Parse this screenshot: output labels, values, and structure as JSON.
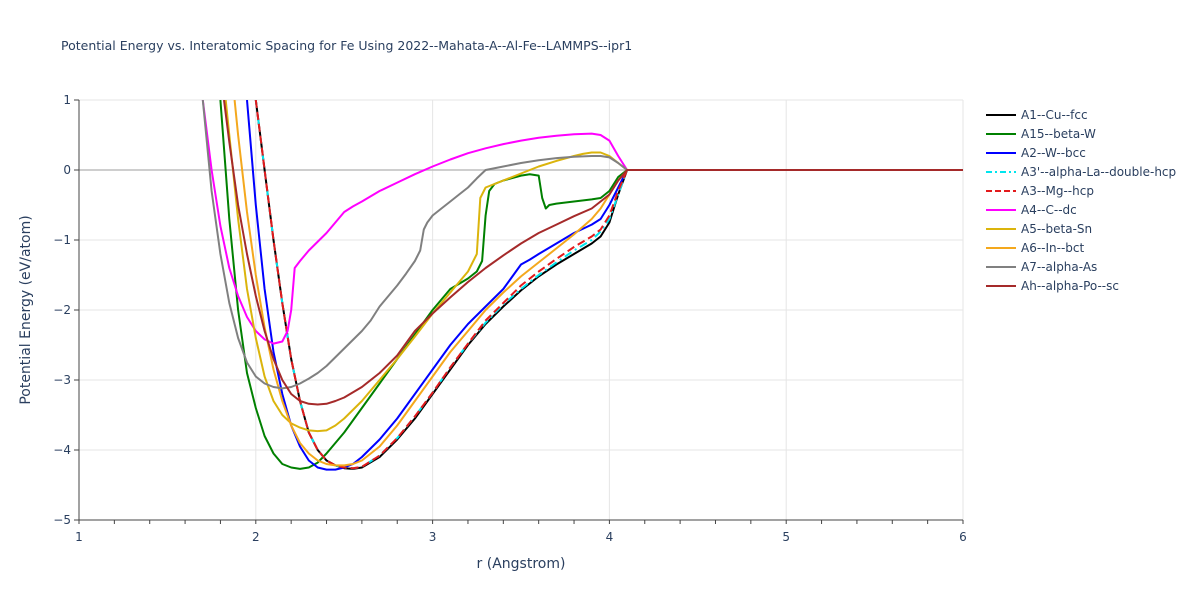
{
  "chart_data": {
    "type": "line",
    "title": "Potential Energy vs. Interatomic Spacing for Fe Using 2022--Mahata-A--Al-Fe--LAMMPS--ipr1",
    "xlabel": "r (Angstrom)",
    "ylabel": "Potential Energy (eV/atom)",
    "xlim": [
      1,
      6
    ],
    "ylim": [
      -5,
      1
    ],
    "xticks": [
      1,
      2,
      3,
      4,
      5,
      6
    ],
    "yticks": [
      1,
      0,
      -1,
      -2,
      -3,
      -4,
      -5
    ],
    "xtick_labels": [
      "1",
      "2",
      "3",
      "4",
      "5",
      "6"
    ],
    "ytick_labels": [
      "1",
      "0",
      "−1",
      "−2",
      "−3",
      "−4",
      "−5"
    ],
    "grid": true,
    "legend_position": "right",
    "series": [
      {
        "name": "A1--Cu--fcc",
        "color": "#000000",
        "dash": "solid",
        "x": [
          2.0,
          2.05,
          2.1,
          2.15,
          2.2,
          2.25,
          2.3,
          2.35,
          2.4,
          2.45,
          2.5,
          2.55,
          2.6,
          2.7,
          2.8,
          2.9,
          3.0,
          3.1,
          3.2,
          3.3,
          3.4,
          3.5,
          3.6,
          3.7,
          3.8,
          3.9,
          3.95,
          4.0,
          4.05,
          4.1,
          6.0
        ],
        "y": [
          1.0,
          0.0,
          -1.0,
          -1.9,
          -2.7,
          -3.3,
          -3.75,
          -4.0,
          -4.15,
          -4.22,
          -4.26,
          -4.27,
          -4.25,
          -4.1,
          -3.85,
          -3.55,
          -3.2,
          -2.85,
          -2.5,
          -2.2,
          -1.95,
          -1.72,
          -1.52,
          -1.35,
          -1.2,
          -1.05,
          -0.95,
          -0.75,
          -0.35,
          0.0,
          0.0
        ]
      },
      {
        "name": "A15--beta-W",
        "color": "#008000",
        "dash": "solid",
        "x": [
          1.8,
          1.85,
          1.9,
          1.95,
          2.0,
          2.05,
          2.1,
          2.15,
          2.2,
          2.25,
          2.3,
          2.35,
          2.4,
          2.5,
          2.6,
          2.7,
          2.8,
          2.9,
          3.0,
          3.1,
          3.2,
          3.25,
          3.28,
          3.3,
          3.32,
          3.35,
          3.4,
          3.5,
          3.55,
          3.6,
          3.62,
          3.64,
          3.66,
          3.7,
          3.8,
          3.9,
          3.95,
          4.0,
          4.05,
          4.1,
          6.0
        ],
        "y": [
          1.0,
          -0.7,
          -2.0,
          -2.9,
          -3.4,
          -3.8,
          -4.05,
          -4.2,
          -4.25,
          -4.27,
          -4.25,
          -4.18,
          -4.05,
          -3.75,
          -3.4,
          -3.05,
          -2.7,
          -2.35,
          -2.0,
          -1.7,
          -1.55,
          -1.45,
          -1.3,
          -0.65,
          -0.3,
          -0.2,
          -0.15,
          -0.08,
          -0.06,
          -0.08,
          -0.4,
          -0.55,
          -0.5,
          -0.48,
          -0.45,
          -0.42,
          -0.4,
          -0.3,
          -0.1,
          0.0,
          0.0
        ]
      },
      {
        "name": "A2--W--bcc",
        "color": "#0000ff",
        "dash": "solid",
        "x": [
          1.95,
          2.0,
          2.05,
          2.1,
          2.15,
          2.2,
          2.25,
          2.3,
          2.35,
          2.4,
          2.45,
          2.5,
          2.55,
          2.6,
          2.7,
          2.8,
          2.9,
          3.0,
          3.1,
          3.2,
          3.3,
          3.4,
          3.5,
          3.55,
          3.6,
          3.7,
          3.8,
          3.9,
          3.95,
          4.0,
          4.05,
          4.1,
          6.0
        ],
        "y": [
          1.0,
          -0.5,
          -1.7,
          -2.6,
          -3.2,
          -3.65,
          -3.95,
          -4.15,
          -4.25,
          -4.28,
          -4.28,
          -4.25,
          -4.2,
          -4.1,
          -3.85,
          -3.55,
          -3.2,
          -2.85,
          -2.5,
          -2.2,
          -1.95,
          -1.7,
          -1.35,
          -1.28,
          -1.2,
          -1.05,
          -0.9,
          -0.78,
          -0.7,
          -0.5,
          -0.25,
          0.0,
          0.0
        ]
      },
      {
        "name": "A3'--alpha-La--double-hcp",
        "color": "#00e5ee",
        "dash": "dashdot",
        "x": [
          2.0,
          2.05,
          2.1,
          2.15,
          2.2,
          2.25,
          2.3,
          2.35,
          2.4,
          2.45,
          2.5,
          2.55,
          2.6,
          2.7,
          2.8,
          2.9,
          3.0,
          3.1,
          3.2,
          3.3,
          3.4,
          3.5,
          3.6,
          3.7,
          3.8,
          3.9,
          3.95,
          4.0,
          4.05,
          4.1,
          6.0
        ],
        "y": [
          1.0,
          0.0,
          -1.0,
          -1.9,
          -2.7,
          -3.3,
          -3.75,
          -4.0,
          -4.15,
          -4.22,
          -4.25,
          -4.26,
          -4.24,
          -4.08,
          -3.83,
          -3.52,
          -3.18,
          -2.82,
          -2.48,
          -2.18,
          -1.92,
          -1.7,
          -1.5,
          -1.32,
          -1.15,
          -1.0,
          -0.88,
          -0.7,
          -0.35,
          0.0,
          0.0
        ]
      },
      {
        "name": "A3--Mg--hcp",
        "color": "#e31a1c",
        "dash": "dash",
        "x": [
          2.0,
          2.05,
          2.1,
          2.15,
          2.2,
          2.25,
          2.3,
          2.35,
          2.4,
          2.45,
          2.5,
          2.55,
          2.6,
          2.7,
          2.8,
          2.9,
          3.0,
          3.1,
          3.2,
          3.3,
          3.4,
          3.5,
          3.6,
          3.7,
          3.8,
          3.9,
          3.95,
          4.0,
          4.05,
          4.1,
          6.0
        ],
        "y": [
          1.0,
          0.0,
          -1.0,
          -1.9,
          -2.7,
          -3.3,
          -3.75,
          -4.0,
          -4.15,
          -4.22,
          -4.25,
          -4.26,
          -4.24,
          -4.08,
          -3.83,
          -3.52,
          -3.18,
          -2.82,
          -2.48,
          -2.15,
          -1.9,
          -1.65,
          -1.45,
          -1.27,
          -1.1,
          -0.95,
          -0.85,
          -0.65,
          -0.3,
          0.0,
          0.0
        ]
      },
      {
        "name": "A4--C--dc",
        "color": "#ff00ff",
        "dash": "solid",
        "x": [
          1.7,
          1.75,
          1.8,
          1.85,
          1.9,
          1.95,
          2.0,
          2.05,
          2.1,
          2.15,
          2.18,
          2.2,
          2.22,
          2.25,
          2.3,
          2.4,
          2.5,
          2.55,
          2.6,
          2.7,
          2.8,
          2.9,
          3.0,
          3.1,
          3.2,
          3.3,
          3.4,
          3.5,
          3.6,
          3.7,
          3.8,
          3.9,
          3.95,
          4.0,
          4.05,
          4.1,
          6.0
        ],
        "y": [
          1.0,
          0.0,
          -0.8,
          -1.4,
          -1.8,
          -2.1,
          -2.3,
          -2.42,
          -2.48,
          -2.45,
          -2.3,
          -2.0,
          -1.4,
          -1.3,
          -1.15,
          -0.9,
          -0.6,
          -0.52,
          -0.45,
          -0.3,
          -0.18,
          -0.06,
          0.05,
          0.15,
          0.24,
          0.31,
          0.37,
          0.42,
          0.46,
          0.49,
          0.51,
          0.52,
          0.5,
          0.42,
          0.2,
          0.0,
          0.0
        ]
      },
      {
        "name": "A5--beta-Sn",
        "color": "#dbb40c",
        "dash": "solid",
        "x": [
          1.83,
          1.85,
          1.9,
          1.95,
          2.0,
          2.05,
          2.1,
          2.15,
          2.2,
          2.25,
          2.3,
          2.35,
          2.4,
          2.45,
          2.5,
          2.6,
          2.7,
          2.8,
          2.9,
          3.0,
          3.1,
          3.2,
          3.25,
          3.27,
          3.3,
          3.35,
          3.4,
          3.5,
          3.6,
          3.7,
          3.8,
          3.85,
          3.9,
          3.95,
          4.0,
          4.05,
          4.1,
          6.0
        ],
        "y": [
          1.0,
          0.5,
          -0.7,
          -1.7,
          -2.4,
          -2.95,
          -3.3,
          -3.5,
          -3.62,
          -3.68,
          -3.72,
          -3.73,
          -3.72,
          -3.65,
          -3.55,
          -3.3,
          -3.0,
          -2.7,
          -2.38,
          -2.05,
          -1.75,
          -1.45,
          -1.2,
          -0.4,
          -0.25,
          -0.2,
          -0.15,
          -0.05,
          0.05,
          0.13,
          0.2,
          0.23,
          0.25,
          0.25,
          0.2,
          0.1,
          0.0,
          0.0
        ]
      },
      {
        "name": "A6--In--bct",
        "color": "#f4a81d",
        "dash": "solid",
        "x": [
          1.88,
          1.9,
          1.95,
          2.0,
          2.05,
          2.1,
          2.15,
          2.2,
          2.25,
          2.3,
          2.35,
          2.4,
          2.45,
          2.5,
          2.55,
          2.6,
          2.7,
          2.8,
          2.9,
          3.0,
          3.1,
          3.2,
          3.3,
          3.4,
          3.5,
          3.6,
          3.7,
          3.8,
          3.9,
          3.95,
          4.0,
          4.05,
          4.1,
          6.0
        ],
        "y": [
          1.0,
          0.5,
          -0.6,
          -1.5,
          -2.25,
          -2.85,
          -3.3,
          -3.65,
          -3.9,
          -4.05,
          -4.15,
          -4.2,
          -4.22,
          -4.22,
          -4.2,
          -4.15,
          -3.95,
          -3.65,
          -3.3,
          -2.95,
          -2.6,
          -2.3,
          -2.0,
          -1.75,
          -1.52,
          -1.32,
          -1.12,
          -0.92,
          -0.7,
          -0.55,
          -0.35,
          -0.15,
          0.0,
          0.0
        ]
      },
      {
        "name": "A7--alpha-As",
        "color": "#808080",
        "dash": "solid",
        "x": [
          1.7,
          1.75,
          1.8,
          1.85,
          1.9,
          1.95,
          2.0,
          2.05,
          2.1,
          2.15,
          2.2,
          2.25,
          2.3,
          2.35,
          2.4,
          2.5,
          2.6,
          2.65,
          2.7,
          2.75,
          2.8,
          2.85,
          2.9,
          2.93,
          2.95,
          2.97,
          3.0,
          3.05,
          3.1,
          3.15,
          3.2,
          3.25,
          3.3,
          3.4,
          3.5,
          3.6,
          3.7,
          3.8,
          3.9,
          3.95,
          4.0,
          4.05,
          4.1,
          6.0
        ],
        "y": [
          1.0,
          -0.3,
          -1.2,
          -1.9,
          -2.4,
          -2.75,
          -2.95,
          -3.05,
          -3.1,
          -3.12,
          -3.1,
          -3.05,
          -2.98,
          -2.9,
          -2.8,
          -2.55,
          -2.3,
          -2.15,
          -1.95,
          -1.8,
          -1.65,
          -1.48,
          -1.3,
          -1.15,
          -0.85,
          -0.75,
          -0.65,
          -0.55,
          -0.45,
          -0.35,
          -0.25,
          -0.12,
          0.0,
          0.05,
          0.1,
          0.14,
          0.17,
          0.19,
          0.2,
          0.2,
          0.18,
          0.1,
          0.0,
          0.0
        ]
      },
      {
        "name": "Ah--alpha-Po--sc",
        "color": "#a52a2a",
        "dash": "solid",
        "x": [
          1.82,
          1.85,
          1.9,
          1.95,
          2.0,
          2.05,
          2.1,
          2.15,
          2.2,
          2.25,
          2.3,
          2.35,
          2.4,
          2.45,
          2.5,
          2.6,
          2.7,
          2.8,
          2.9,
          3.0,
          3.1,
          3.2,
          3.3,
          3.4,
          3.5,
          3.6,
          3.7,
          3.8,
          3.9,
          3.95,
          4.0,
          4.05,
          4.1,
          6.0
        ],
        "y": [
          1.0,
          0.4,
          -0.5,
          -1.2,
          -1.8,
          -2.3,
          -2.7,
          -3.0,
          -3.2,
          -3.3,
          -3.34,
          -3.35,
          -3.34,
          -3.3,
          -3.25,
          -3.1,
          -2.9,
          -2.65,
          -2.3,
          -2.05,
          -1.82,
          -1.6,
          -1.4,
          -1.22,
          -1.05,
          -0.9,
          -0.78,
          -0.66,
          -0.55,
          -0.45,
          -0.35,
          -0.15,
          0.0,
          0.0
        ]
      }
    ]
  }
}
